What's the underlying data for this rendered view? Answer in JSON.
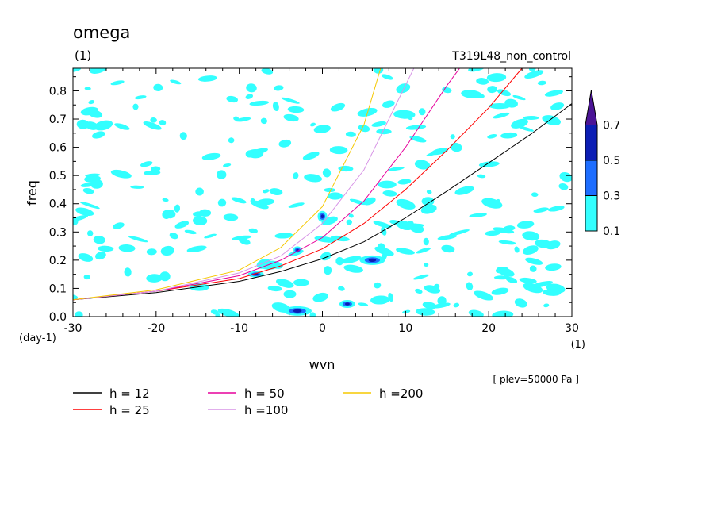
{
  "header": {
    "title": "omega",
    "units": "(1)",
    "experiment": "T319L48_non_control"
  },
  "footer": {
    "level_note": "[ plev=50000 Pa ]"
  },
  "colorbar": {
    "labels": [
      "0.1",
      "0.3",
      "0.5",
      "0.7"
    ],
    "bins": [
      {
        "from": 0.1,
        "to": 0.3,
        "color": "#33ffff"
      },
      {
        "from": 0.3,
        "to": 0.5,
        "color": "#1e6eff"
      },
      {
        "from": 0.5,
        "to": 0.7,
        "color": "#0c1eb4"
      },
      {
        "from": 0.7,
        "to": null,
        "color": "#4b1496"
      }
    ]
  },
  "chart_data": {
    "type": "line",
    "xlabel": "wvn",
    "ylabel": "freq",
    "x_units": "(1)",
    "y_units": "(day-1)",
    "xlim": [
      -30,
      30
    ],
    "ylim": [
      0,
      0.88
    ],
    "x_ticks": [
      -30,
      -20,
      -10,
      0,
      10,
      20,
      30
    ],
    "x_tick_labels": [
      "-30",
      "-20",
      "-10",
      "0",
      "10",
      "20",
      "30"
    ],
    "y_ticks": [
      0,
      0.1,
      0.2,
      0.3,
      0.4,
      0.5,
      0.6,
      0.7,
      0.8
    ],
    "y_tick_labels": [
      "0.0",
      "0.1",
      "0.2",
      "0.3",
      "0.4",
      "0.5",
      "0.6",
      "0.7",
      "0.8"
    ],
    "series": [
      {
        "name": "h = 12",
        "color": "#000000",
        "x": [
          -30,
          -20,
          -10,
          -5,
          0,
          5,
          10,
          15,
          20,
          25,
          30
        ],
        "y": [
          0.06,
          0.085,
          0.125,
          0.16,
          0.205,
          0.265,
          0.35,
          0.445,
          0.545,
          0.645,
          0.755
        ]
      },
      {
        "name": "h = 25",
        "color": "#ff0000",
        "x": [
          -30,
          -20,
          -10,
          -5,
          0,
          5,
          10,
          15,
          20,
          24
        ],
        "y": [
          0.06,
          0.09,
          0.135,
          0.18,
          0.24,
          0.33,
          0.45,
          0.59,
          0.74,
          0.88
        ]
      },
      {
        "name": "h = 50",
        "color": "#e6009b",
        "x": [
          -30,
          -20,
          -10,
          -5,
          0,
          5,
          10,
          15,
          16.5
        ],
        "y": [
          0.06,
          0.09,
          0.145,
          0.2,
          0.28,
          0.41,
          0.6,
          0.82,
          0.88
        ]
      },
      {
        "name": "h =100",
        "color": "#d794e6",
        "x": [
          -30,
          -20,
          -10,
          -5,
          0,
          5,
          10,
          11
        ],
        "y": [
          0.06,
          0.09,
          0.155,
          0.215,
          0.33,
          0.52,
          0.82,
          0.88
        ]
      },
      {
        "name": "h =200",
        "color": "#f5c800",
        "x": [
          -30,
          -20,
          -10,
          -5,
          0,
          5,
          7
        ],
        "y": [
          0.06,
          0.095,
          0.165,
          0.245,
          0.39,
          0.68,
          0.88
        ]
      }
    ],
    "grid": false,
    "legend_position": "bottom-left"
  }
}
